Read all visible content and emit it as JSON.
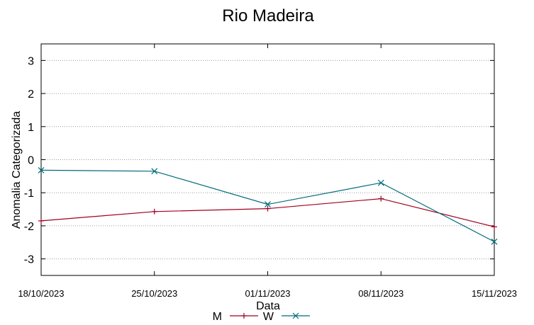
{
  "chart_data": {
    "type": "line",
    "title": "Rio Madeira",
    "xlabel": "Data",
    "ylabel": "Anomalia Categorizada",
    "x": [
      "18/10/2023",
      "25/10/2023",
      "01/11/2023",
      "08/11/2023",
      "15/11/2023"
    ],
    "ylim": [
      -3.5,
      3.5
    ],
    "yticks": [
      3,
      2,
      1,
      0,
      -1,
      -2,
      -3
    ],
    "grid": true,
    "legend_position": "bottom-center",
    "series": [
      {
        "name": "M",
        "values": [
          -1.85,
          -1.57,
          -1.48,
          -1.18,
          -2.03
        ],
        "color": "#a0001e",
        "marker": "plus"
      },
      {
        "name": "W",
        "values": [
          -0.32,
          -0.35,
          -1.35,
          -0.7,
          -2.48
        ],
        "color": "#006b7c",
        "marker": "cross"
      }
    ]
  }
}
